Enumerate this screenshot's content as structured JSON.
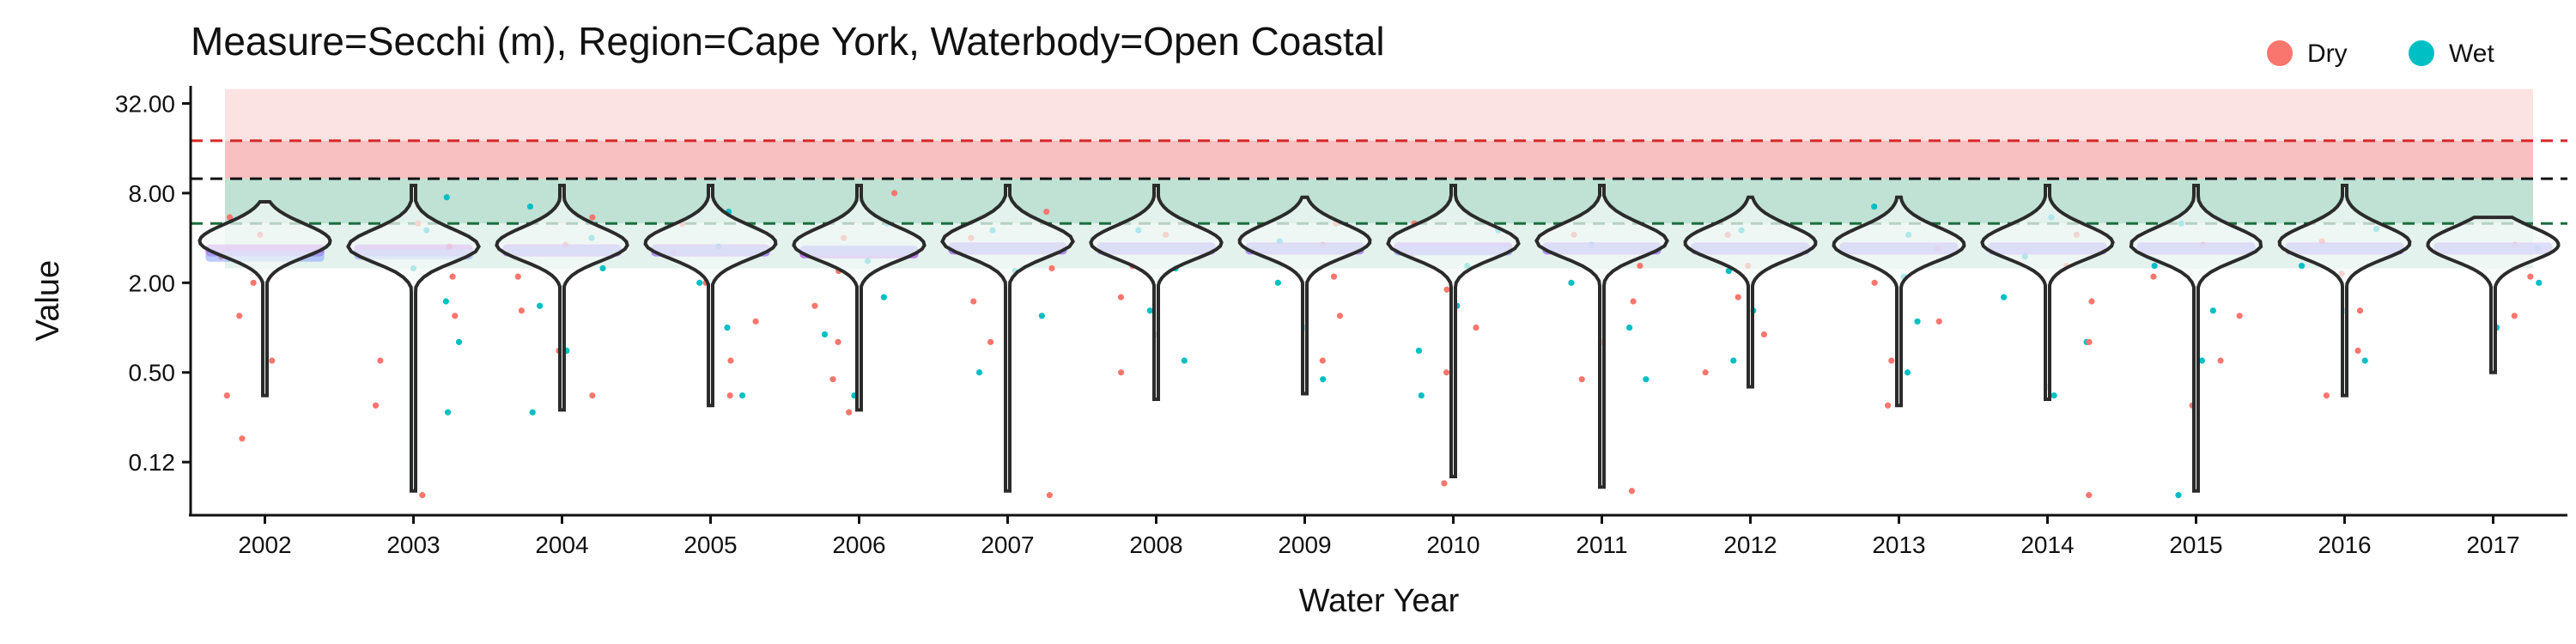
{
  "chart_data": {
    "type": "violin-scatter",
    "title": "Measure=Secchi (m), Region=Cape York, Waterbody=Open Coastal",
    "xlabel": "Water Year",
    "ylabel": "Value",
    "y_scale": "log2",
    "ylim": [
      0.055,
      42
    ],
    "y_ticks": [
      32,
      8,
      2,
      0.5,
      0.125
    ],
    "y_tick_labels": [
      "32.00",
      "8.00",
      "2.00",
      "0.50",
      "0.12"
    ],
    "categories": [
      "2002",
      "2003",
      "2004",
      "2005",
      "2006",
      "2007",
      "2008",
      "2009",
      "2010",
      "2011",
      "2012",
      "2013",
      "2014",
      "2015",
      "2016",
      "2017"
    ],
    "legend": {
      "placement": "top-right",
      "items": [
        {
          "label": "Dry",
          "color": "#F8766D"
        },
        {
          "label": "Wet",
          "color": "#00BFC4"
        }
      ]
    },
    "reference_lines": [
      {
        "value": 18.0,
        "color": "#D62728",
        "style": "dashed"
      },
      {
        "value": 10.0,
        "color": "#111111",
        "style": "dashed"
      },
      {
        "value": 5.0,
        "color": "#1B6E3C",
        "style": "dashed"
      }
    ],
    "bands": [
      {
        "from": 18.0,
        "to": 40.0,
        "color": "#FCE3E3"
      },
      {
        "from": 10.0,
        "to": 18.0,
        "color": "#F8C0C0"
      },
      {
        "from": 5.0,
        "to": 10.0,
        "color": "#BFE2D5"
      },
      {
        "from": 2.5,
        "to": 5.0,
        "color": "#E3F2EC"
      }
    ],
    "violins": [
      {
        "year": "2002",
        "min": 0.35,
        "max": 7.0,
        "mode": 3.8
      },
      {
        "year": "2003",
        "min": 0.08,
        "max": 9.0,
        "mode": 3.5
      },
      {
        "year": "2004",
        "min": 0.28,
        "max": 9.0,
        "mode": 3.6
      },
      {
        "year": "2005",
        "min": 0.3,
        "max": 9.0,
        "mode": 3.7
      },
      {
        "year": "2006",
        "min": 0.28,
        "max": 9.0,
        "mode": 3.6
      },
      {
        "year": "2007",
        "min": 0.08,
        "max": 9.0,
        "mode": 3.8
      },
      {
        "year": "2008",
        "min": 0.33,
        "max": 9.0,
        "mode": 3.7
      },
      {
        "year": "2009",
        "min": 0.36,
        "max": 7.5,
        "mode": 3.8
      },
      {
        "year": "2010",
        "min": 0.1,
        "max": 9.0,
        "mode": 3.7
      },
      {
        "year": "2011",
        "min": 0.085,
        "max": 9.0,
        "mode": 3.8
      },
      {
        "year": "2012",
        "min": 0.4,
        "max": 7.5,
        "mode": 3.7
      },
      {
        "year": "2013",
        "min": 0.3,
        "max": 7.5,
        "mode": 3.6
      },
      {
        "year": "2014",
        "min": 0.33,
        "max": 9.0,
        "mode": 3.7
      },
      {
        "year": "2015",
        "min": 0.08,
        "max": 9.0,
        "mode": 3.6
      },
      {
        "year": "2016",
        "min": 0.35,
        "max": 9.0,
        "mode": 3.7
      },
      {
        "year": "2017",
        "min": 0.5,
        "max": 5.5,
        "mode": 3.6
      }
    ],
    "medians": [
      {
        "year": "2002",
        "dry": 3.3,
        "wet": 3.0
      },
      {
        "year": "2003",
        "dry": 3.3,
        "wet": 3.1
      },
      {
        "year": "2004",
        "dry": 3.3,
        "wet": 3.3
      },
      {
        "year": "2005",
        "dry": 3.3,
        "wet": 3.3
      },
      {
        "year": "2006",
        "dry": 3.2,
        "wet": 3.3
      },
      {
        "year": "2007",
        "dry": 3.4,
        "wet": 3.4
      },
      {
        "year": "2008",
        "dry": 3.4,
        "wet": 3.4
      },
      {
        "year": "2009",
        "dry": 3.4,
        "wet": 3.4
      },
      {
        "year": "2010",
        "dry": 3.4,
        "wet": 3.3
      },
      {
        "year": "2011",
        "dry": 3.4,
        "wet": 3.4
      },
      {
        "year": "2012",
        "dry": 3.4,
        "wet": 3.4
      },
      {
        "year": "2013",
        "dry": 3.4,
        "wet": 3.4
      },
      {
        "year": "2014",
        "dry": 3.4,
        "wet": 3.4
      },
      {
        "year": "2015",
        "dry": 3.4,
        "wet": 3.4
      },
      {
        "year": "2016",
        "dry": 3.4,
        "wet": 3.4
      },
      {
        "year": "2017",
        "dry": 3.4,
        "wet": 3.4
      }
    ],
    "points": [
      {
        "year": "2002",
        "season": "Dry",
        "y": 0.18
      },
      {
        "year": "2002",
        "season": "Dry",
        "y": 0.35
      },
      {
        "year": "2002",
        "season": "Dry",
        "y": 0.6
      },
      {
        "year": "2002",
        "season": "Dry",
        "y": 1.2
      },
      {
        "year": "2002",
        "season": "Dry",
        "y": 2.0
      },
      {
        "year": "2002",
        "season": "Dry",
        "y": 3.0
      },
      {
        "year": "2002",
        "season": "Dry",
        "y": 4.2
      },
      {
        "year": "2002",
        "season": "Dry",
        "y": 5.5
      },
      {
        "year": "2003",
        "season": "Wet",
        "y": 0.27
      },
      {
        "year": "2003",
        "season": "Wet",
        "y": 0.8
      },
      {
        "year": "2003",
        "season": "Wet",
        "y": 1.5
      },
      {
        "year": "2003",
        "season": "Wet",
        "y": 2.5
      },
      {
        "year": "2003",
        "season": "Wet",
        "y": 4.5
      },
      {
        "year": "2003",
        "season": "Wet",
        "y": 7.5
      },
      {
        "year": "2003",
        "season": "Dry",
        "y": 0.075
      },
      {
        "year": "2003",
        "season": "Dry",
        "y": 0.3
      },
      {
        "year": "2003",
        "season": "Dry",
        "y": 0.6
      },
      {
        "year": "2003",
        "season": "Dry",
        "y": 1.2
      },
      {
        "year": "2003",
        "season": "Dry",
        "y": 2.2
      },
      {
        "year": "2003",
        "season": "Dry",
        "y": 3.5
      },
      {
        "year": "2003",
        "season": "Dry",
        "y": 5.0
      },
      {
        "year": "2004",
        "season": "Wet",
        "y": 0.27
      },
      {
        "year": "2004",
        "season": "Wet",
        "y": 0.7
      },
      {
        "year": "2004",
        "season": "Wet",
        "y": 1.4
      },
      {
        "year": "2004",
        "season": "Wet",
        "y": 2.5
      },
      {
        "year": "2004",
        "season": "Wet",
        "y": 4.0
      },
      {
        "year": "2004",
        "season": "Wet",
        "y": 6.5
      },
      {
        "year": "2004",
        "season": "Dry",
        "y": 0.35
      },
      {
        "year": "2004",
        "season": "Dry",
        "y": 0.7
      },
      {
        "year": "2004",
        "season": "Dry",
        "y": 1.3
      },
      {
        "year": "2004",
        "season": "Dry",
        "y": 2.2
      },
      {
        "year": "2004",
        "season": "Dry",
        "y": 3.6
      },
      {
        "year": "2004",
        "season": "Dry",
        "y": 5.5
      },
      {
        "year": "2005",
        "season": "Wet",
        "y": 0.35
      },
      {
        "year": "2005",
        "season": "Wet",
        "y": 1.0
      },
      {
        "year": "2005",
        "season": "Wet",
        "y": 2.0
      },
      {
        "year": "2005",
        "season": "Wet",
        "y": 3.5
      },
      {
        "year": "2005",
        "season": "Wet",
        "y": 6.0
      },
      {
        "year": "2005",
        "season": "Dry",
        "y": 0.35
      },
      {
        "year": "2005",
        "season": "Dry",
        "y": 0.6
      },
      {
        "year": "2005",
        "season": "Dry",
        "y": 1.1
      },
      {
        "year": "2005",
        "season": "Dry",
        "y": 2.0
      },
      {
        "year": "2005",
        "season": "Dry",
        "y": 3.2
      },
      {
        "year": "2005",
        "season": "Dry",
        "y": 5.0
      },
      {
        "year": "2006",
        "season": "Wet",
        "y": 0.35
      },
      {
        "year": "2006",
        "season": "Wet",
        "y": 0.9
      },
      {
        "year": "2006",
        "season": "Wet",
        "y": 1.6
      },
      {
        "year": "2006",
        "season": "Wet",
        "y": 2.8
      },
      {
        "year": "2006",
        "season": "Wet",
        "y": 5.0
      },
      {
        "year": "2006",
        "season": "Dry",
        "y": 0.27
      },
      {
        "year": "2006",
        "season": "Dry",
        "y": 0.45
      },
      {
        "year": "2006",
        "season": "Dry",
        "y": 0.8
      },
      {
        "year": "2006",
        "season": "Dry",
        "y": 1.4
      },
      {
        "year": "2006",
        "season": "Dry",
        "y": 2.4
      },
      {
        "year": "2006",
        "season": "Dry",
        "y": 4.0
      },
      {
        "year": "2006",
        "season": "Dry",
        "y": 8.0
      },
      {
        "year": "2007",
        "season": "Dry",
        "y": 0.075
      },
      {
        "year": "2007",
        "season": "Wet",
        "y": 0.5
      },
      {
        "year": "2007",
        "season": "Wet",
        "y": 1.2
      },
      {
        "year": "2007",
        "season": "Wet",
        "y": 2.4
      },
      {
        "year": "2007",
        "season": "Wet",
        "y": 4.5
      },
      {
        "year": "2007",
        "season": "Dry",
        "y": 0.8
      },
      {
        "year": "2007",
        "season": "Dry",
        "y": 1.5
      },
      {
        "year": "2007",
        "season": "Dry",
        "y": 2.5
      },
      {
        "year": "2007",
        "season": "Dry",
        "y": 4.0
      },
      {
        "year": "2007",
        "season": "Dry",
        "y": 6.0
      },
      {
        "year": "2008",
        "season": "Wet",
        "y": 0.6
      },
      {
        "year": "2008",
        "season": "Wet",
        "y": 1.3
      },
      {
        "year": "2008",
        "season": "Wet",
        "y": 2.5
      },
      {
        "year": "2008",
        "season": "Wet",
        "y": 4.5
      },
      {
        "year": "2008",
        "season": "Dry",
        "y": 0.5
      },
      {
        "year": "2008",
        "season": "Dry",
        "y": 0.9
      },
      {
        "year": "2008",
        "season": "Dry",
        "y": 1.6
      },
      {
        "year": "2008",
        "season": "Dry",
        "y": 2.6
      },
      {
        "year": "2008",
        "season": "Dry",
        "y": 4.2
      },
      {
        "year": "2009",
        "season": "Wet",
        "y": 0.45
      },
      {
        "year": "2009",
        "season": "Wet",
        "y": 1.0
      },
      {
        "year": "2009",
        "season": "Wet",
        "y": 2.0
      },
      {
        "year": "2009",
        "season": "Wet",
        "y": 3.8
      },
      {
        "year": "2009",
        "season": "Dry",
        "y": 0.6
      },
      {
        "year": "2009",
        "season": "Dry",
        "y": 1.2
      },
      {
        "year": "2009",
        "season": "Dry",
        "y": 2.2
      },
      {
        "year": "2009",
        "season": "Dry",
        "y": 3.6
      },
      {
        "year": "2009",
        "season": "Dry",
        "y": 5.0
      },
      {
        "year": "2010",
        "season": "Dry",
        "y": 0.09
      },
      {
        "year": "2010",
        "season": "Wet",
        "y": 0.35
      },
      {
        "year": "2010",
        "season": "Wet",
        "y": 0.7
      },
      {
        "year": "2010",
        "season": "Wet",
        "y": 1.4
      },
      {
        "year": "2010",
        "season": "Wet",
        "y": 2.6
      },
      {
        "year": "2010",
        "season": "Wet",
        "y": 4.5
      },
      {
        "year": "2010",
        "season": "Dry",
        "y": 0.5
      },
      {
        "year": "2010",
        "season": "Dry",
        "y": 1.0
      },
      {
        "year": "2010",
        "season": "Dry",
        "y": 1.8
      },
      {
        "year": "2010",
        "season": "Dry",
        "y": 3.0
      },
      {
        "year": "2010",
        "season": "Dry",
        "y": 5.0
      },
      {
        "year": "2011",
        "season": "Dry",
        "y": 0.08
      },
      {
        "year": "2011",
        "season": "Wet",
        "y": 0.45
      },
      {
        "year": "2011",
        "season": "Wet",
        "y": 1.0
      },
      {
        "year": "2011",
        "season": "Wet",
        "y": 2.0
      },
      {
        "year": "2011",
        "season": "Wet",
        "y": 3.6
      },
      {
        "year": "2011",
        "season": "Dry",
        "y": 0.45
      },
      {
        "year": "2011",
        "season": "Dry",
        "y": 0.8
      },
      {
        "year": "2011",
        "season": "Dry",
        "y": 1.5
      },
      {
        "year": "2011",
        "season": "Dry",
        "y": 2.6
      },
      {
        "year": "2011",
        "season": "Dry",
        "y": 4.2
      },
      {
        "year": "2012",
        "season": "Wet",
        "y": 0.6
      },
      {
        "year": "2012",
        "season": "Wet",
        "y": 1.3
      },
      {
        "year": "2012",
        "season": "Wet",
        "y": 2.4
      },
      {
        "year": "2012",
        "season": "Wet",
        "y": 4.5
      },
      {
        "year": "2012",
        "season": "Dry",
        "y": 0.5
      },
      {
        "year": "2012",
        "season": "Dry",
        "y": 0.9
      },
      {
        "year": "2012",
        "season": "Dry",
        "y": 1.6
      },
      {
        "year": "2012",
        "season": "Dry",
        "y": 2.6
      },
      {
        "year": "2012",
        "season": "Dry",
        "y": 4.2
      },
      {
        "year": "2013",
        "season": "Wet",
        "y": 0.5
      },
      {
        "year": "2013",
        "season": "Wet",
        "y": 1.1
      },
      {
        "year": "2013",
        "season": "Wet",
        "y": 2.2
      },
      {
        "year": "2013",
        "season": "Wet",
        "y": 4.2
      },
      {
        "year": "2013",
        "season": "Wet",
        "y": 6.5
      },
      {
        "year": "2013",
        "season": "Dry",
        "y": 0.3
      },
      {
        "year": "2013",
        "season": "Dry",
        "y": 0.6
      },
      {
        "year": "2013",
        "season": "Dry",
        "y": 1.1
      },
      {
        "year": "2013",
        "season": "Dry",
        "y": 2.0
      },
      {
        "year": "2013",
        "season": "Dry",
        "y": 3.4
      },
      {
        "year": "2014",
        "season": "Dry",
        "y": 0.075
      },
      {
        "year": "2014",
        "season": "Wet",
        "y": 0.35
      },
      {
        "year": "2014",
        "season": "Wet",
        "y": 0.8
      },
      {
        "year": "2014",
        "season": "Wet",
        "y": 1.6
      },
      {
        "year": "2014",
        "season": "Wet",
        "y": 3.0
      },
      {
        "year": "2014",
        "season": "Wet",
        "y": 5.5
      },
      {
        "year": "2014",
        "season": "Dry",
        "y": 0.4
      },
      {
        "year": "2014",
        "season": "Dry",
        "y": 0.8
      },
      {
        "year": "2014",
        "season": "Dry",
        "y": 1.5
      },
      {
        "year": "2014",
        "season": "Dry",
        "y": 2.6
      },
      {
        "year": "2014",
        "season": "Dry",
        "y": 4.2
      },
      {
        "year": "2015",
        "season": "Wet",
        "y": 0.075
      },
      {
        "year": "2015",
        "season": "Wet",
        "y": 0.6
      },
      {
        "year": "2015",
        "season": "Wet",
        "y": 1.3
      },
      {
        "year": "2015",
        "season": "Wet",
        "y": 2.6
      },
      {
        "year": "2015",
        "season": "Wet",
        "y": 5.0
      },
      {
        "year": "2015",
        "season": "Dry",
        "y": 0.3
      },
      {
        "year": "2015",
        "season": "Dry",
        "y": 0.6
      },
      {
        "year": "2015",
        "season": "Dry",
        "y": 1.2
      },
      {
        "year": "2015",
        "season": "Dry",
        "y": 2.2
      },
      {
        "year": "2015",
        "season": "Dry",
        "y": 3.6
      },
      {
        "year": "2016",
        "season": "Dry",
        "y": 0.35
      },
      {
        "year": "2016",
        "season": "Dry",
        "y": 0.7
      },
      {
        "year": "2016",
        "season": "Dry",
        "y": 1.3
      },
      {
        "year": "2016",
        "season": "Dry",
        "y": 2.3
      },
      {
        "year": "2016",
        "season": "Dry",
        "y": 3.8
      },
      {
        "year": "2016",
        "season": "Wet",
        "y": 0.6
      },
      {
        "year": "2016",
        "season": "Wet",
        "y": 1.3
      },
      {
        "year": "2016",
        "season": "Wet",
        "y": 2.6
      },
      {
        "year": "2016",
        "season": "Wet",
        "y": 4.6
      },
      {
        "year": "2017",
        "season": "Dry",
        "y": 1.2
      },
      {
        "year": "2017",
        "season": "Dry",
        "y": 2.2
      },
      {
        "year": "2017",
        "season": "Dry",
        "y": 3.6
      },
      {
        "year": "2017",
        "season": "Wet",
        "y": 1.0
      },
      {
        "year": "2017",
        "season": "Wet",
        "y": 2.0
      },
      {
        "year": "2017",
        "season": "Wet",
        "y": 3.4
      }
    ]
  }
}
